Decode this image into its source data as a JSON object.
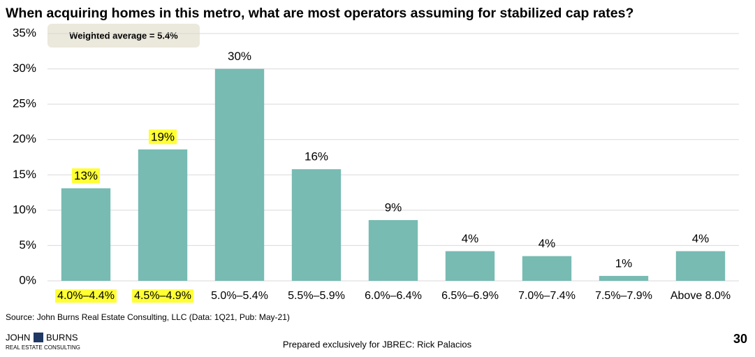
{
  "chart_data": {
    "type": "bar",
    "title": "When acquiring homes in this metro, what are most operators assuming for stabilized cap rates?",
    "annotation": "Weighted average = 5.4%",
    "categories": [
      "4.0%–4.4%",
      "4.5%–4.9%",
      "5.0%–5.4%",
      "5.5%–5.9%",
      "6.0%–6.4%",
      "6.5%–6.9%",
      "7.0%–7.4%",
      "7.5%–7.9%",
      "Above 8.0%"
    ],
    "values": [
      13.1,
      18.6,
      30.0,
      15.8,
      8.6,
      4.2,
      3.5,
      0.7,
      4.2
    ],
    "value_labels": [
      "13%",
      "19%",
      "30%",
      "16%",
      "9%",
      "4%",
      "4%",
      "1%",
      "4%"
    ],
    "color": "#77bbb3",
    "highlight": [
      true,
      true,
      false,
      false,
      false,
      false,
      false,
      false,
      false
    ],
    "highlight_color": "#ffff33",
    "ylim": [
      0,
      35
    ],
    "yticks": [
      {
        "value": 0,
        "label": "0%"
      },
      {
        "value": 5,
        "label": "5%"
      },
      {
        "value": 10,
        "label": "10%"
      },
      {
        "value": 15,
        "label": "15%"
      },
      {
        "value": 20,
        "label": "20%"
      },
      {
        "value": 25,
        "label": "25%"
      },
      {
        "value": 30,
        "label": "30%"
      },
      {
        "value": 35,
        "label": "35%"
      }
    ],
    "grid": true
  },
  "source": "Source: John Burns Real Estate Consulting, LLC (Data: 1Q21, Pub: May-21)",
  "footer": {
    "prepared": "Prepared exclusively for JBREC: Rick Palacios",
    "page": "30"
  },
  "logo": {
    "first": "JOHN",
    "second": "BURNS",
    "tagline": "REAL ESTATE CONSULTING"
  }
}
